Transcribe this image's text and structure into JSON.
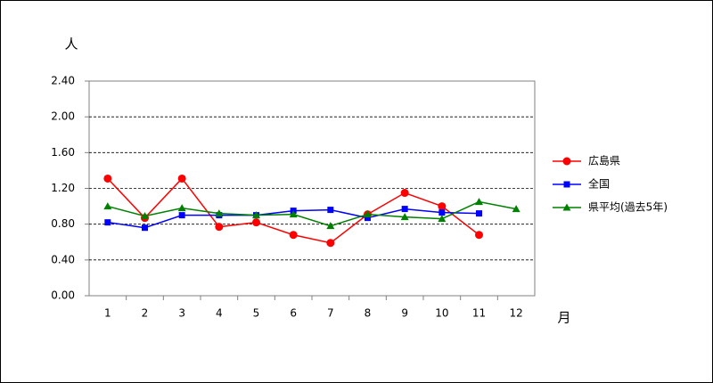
{
  "chart_data": {
    "type": "line",
    "y_label": "人",
    "x_label": "月",
    "categories": [
      "1",
      "2",
      "3",
      "4",
      "5",
      "6",
      "7",
      "8",
      "9",
      "10",
      "11",
      "12"
    ],
    "series": [
      {
        "name": "広島県",
        "color": "#ff0000",
        "marker": "circle",
        "values": [
          1.31,
          0.87,
          1.31,
          0.77,
          0.82,
          0.68,
          0.59,
          0.91,
          1.15,
          1.0,
          0.68,
          null
        ]
      },
      {
        "name": "全国",
        "color": "#0000ff",
        "marker": "square",
        "values": [
          0.82,
          0.76,
          0.9,
          0.9,
          0.9,
          0.95,
          0.96,
          0.87,
          0.97,
          0.93,
          0.92,
          null
        ]
      },
      {
        "name": "県平均(過去5年)",
        "color": "#008000",
        "marker": "triangle",
        "values": [
          1.0,
          0.89,
          0.98,
          0.92,
          0.9,
          0.91,
          0.78,
          0.91,
          0.88,
          0.86,
          1.05,
          0.97
        ]
      }
    ],
    "ylim": [
      0,
      2.4
    ],
    "yticks": [
      {
        "value": 0,
        "label": "0.00"
      },
      {
        "value": 0.4,
        "label": "0.40"
      },
      {
        "value": 0.8,
        "label": "0.80"
      },
      {
        "value": 1.2,
        "label": "1.20"
      },
      {
        "value": 1.6,
        "label": "1.60"
      },
      {
        "value": 2.0,
        "label": "2.00"
      },
      {
        "value": 2.4,
        "label": "2.40"
      }
    ],
    "grid": true,
    "legend": "right"
  }
}
